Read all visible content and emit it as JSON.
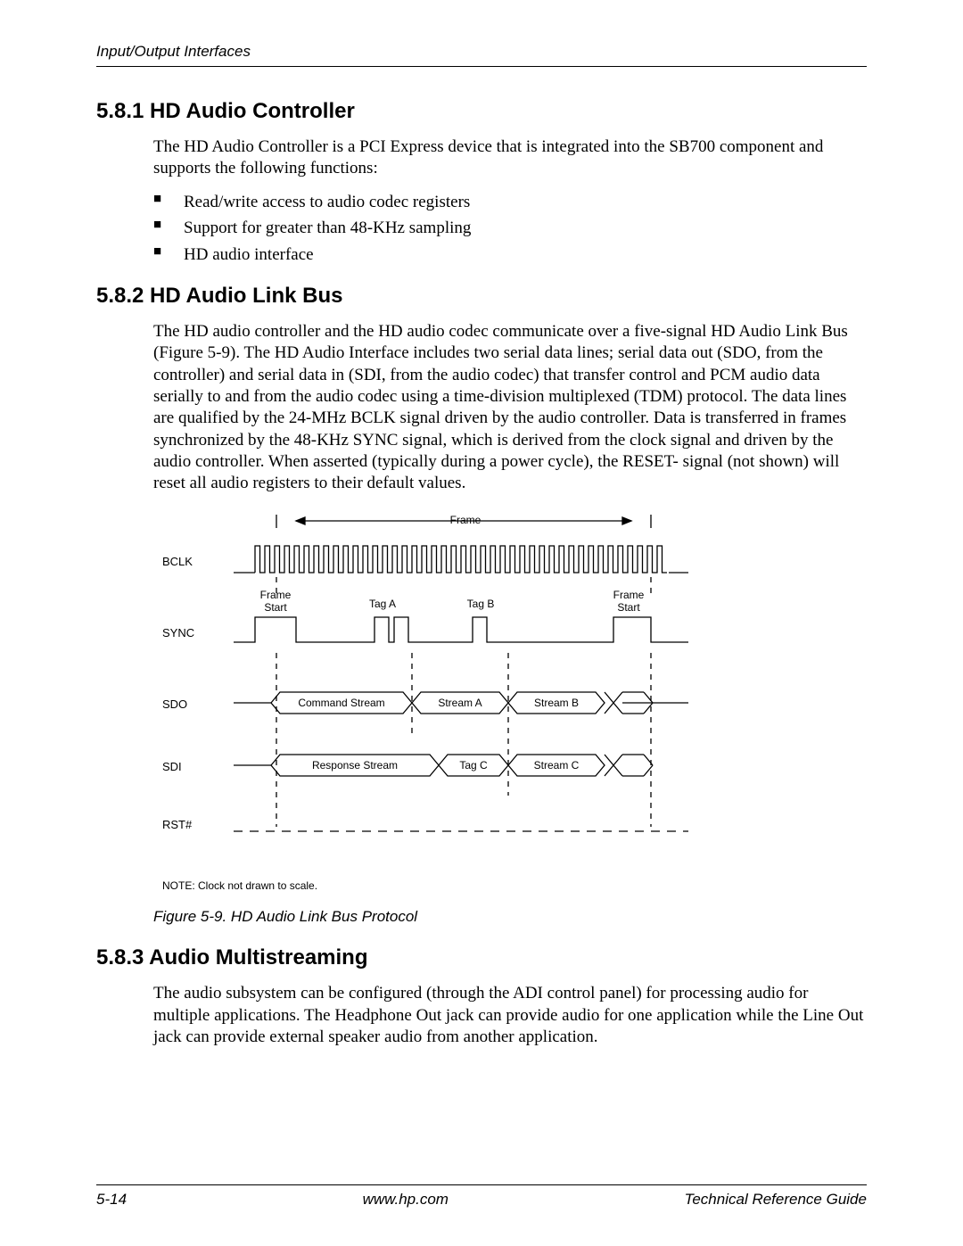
{
  "header": {
    "section": "Input/Output Interfaces"
  },
  "s1": {
    "heading": "5.8.1 HD Audio Controller",
    "para": "The HD Audio Controller is a PCI Express device that is integrated into the SB700 component and supports the following functions:",
    "bullets": {
      "b1": "Read/write access to audio codec registers",
      "b2": "Support for greater than 48-KHz sampling",
      "b3": "HD audio interface"
    }
  },
  "s2": {
    "heading": "5.8.2 HD Audio Link Bus",
    "para": "The HD audio controller and the HD audio codec communicate over a five-signal HD Audio Link Bus (Figure 5-9). The HD Audio Interface includes two serial data lines; serial data out (SDO, from the controller) and serial data in (SDI, from the audio codec) that transfer control and PCM audio data serially to and from the audio codec using a time-division multiplexed (TDM) protocol. The data lines are qualified by the 24-MHz BCLK signal driven by the audio controller. Data is transferred in frames synchronized by the 48-KHz SYNC signal, which is derived from the clock signal and driven by the audio controller. When asserted (typically during a power cycle), the RESET- signal (not shown) will reset all audio registers to their default values."
  },
  "diagram": {
    "frame_label": "Frame",
    "signals": {
      "bclk": "BCLK",
      "sync": "SYNC",
      "sdo": "SDO",
      "sdi": "SDI",
      "rst": "RST#"
    },
    "sync_labels": {
      "fs1": "Frame\nStart",
      "taga": "Tag A",
      "tagb": "Tag B",
      "fs2": "Frame\nStart"
    },
    "sdo_labels": {
      "cmd": "Command Stream",
      "a": "Stream A",
      "b": "Stream B"
    },
    "sdi_labels": {
      "resp": "Response Stream",
      "tagc": "Tag C",
      "c": "Stream C"
    },
    "note": "NOTE: Clock not drawn to scale.",
    "caption": "Figure 5-9. HD Audio Link Bus Protocol",
    "colors": {
      "line": "#000000",
      "bg": "#ffffff"
    }
  },
  "s3": {
    "heading": "5.8.3 Audio Multistreaming",
    "para": "The audio subsystem can be configured (through the ADI control panel) for processing audio for multiple applications. The Headphone Out jack can provide audio for one application while the Line Out jack can provide external speaker audio from another application."
  },
  "footer": {
    "page": "5-14",
    "url": "www.hp.com",
    "title": "Technical Reference Guide"
  }
}
